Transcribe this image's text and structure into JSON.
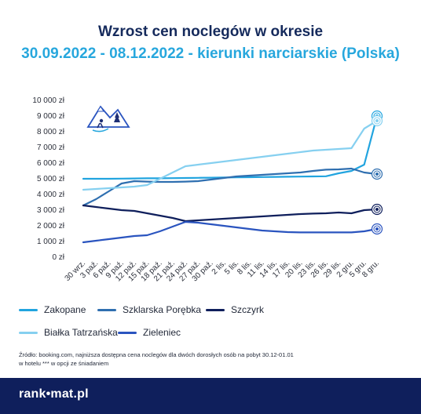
{
  "title": "Wzrost cen noclegów w okresie",
  "subtitle": "30.09.2022 - 08.12.2022 - kierunki narciarskie (Polska)",
  "chart_data": {
    "type": "line",
    "categories": [
      "30 wrz.",
      "3 paź.",
      "6 paź.",
      "9 paź.",
      "12 paź.",
      "15 paź.",
      "18 paź.",
      "21 paź.",
      "24 paź.",
      "27 paź.",
      "30 paź.",
      "2 lis.",
      "5 lis.",
      "8 lis.",
      "11 lis.",
      "14 lis.",
      "17 lis.",
      "20 lis.",
      "23 lis.",
      "26 lis.",
      "29 lis.",
      "2 gru.",
      "5 gru.",
      "8 gru."
    ],
    "y_ticks": [
      "0 zł",
      "1 000 zł",
      "2 000 zł",
      "3 000 zł",
      "4 000 zł",
      "5 000 zł",
      "6 000 zł",
      "7 000 zł",
      "8 000 zł",
      "9 000 zł",
      "10 000 zł"
    ],
    "ylim": [
      0,
      10000
    ],
    "grid": false,
    "legend_position": "bottom",
    "series": [
      {
        "name": "Zakopane",
        "color": "#21a4df",
        "values": [
          5000,
          5000,
          5000,
          5010,
          5020,
          5030,
          5030,
          5040,
          5050,
          5060,
          5070,
          5080,
          5090,
          5100,
          5110,
          5120,
          5130,
          5140,
          5150,
          5160,
          5350,
          5500,
          5900,
          9000
        ]
      },
      {
        "name": "Szklarska Porębka",
        "color": "#2f6fb0",
        "values": [
          3300,
          3700,
          4200,
          4700,
          4850,
          4820,
          4800,
          4800,
          4820,
          4850,
          4950,
          5050,
          5150,
          5200,
          5250,
          5300,
          5350,
          5400,
          5500,
          5580,
          5600,
          5650,
          5400,
          5300
        ]
      },
      {
        "name": "Szczyrk",
        "color": "#0f1f5c",
        "values": [
          3300,
          3200,
          3100,
          3000,
          2950,
          2800,
          2650,
          2500,
          2300,
          2350,
          2400,
          2450,
          2500,
          2550,
          2600,
          2650,
          2700,
          2750,
          2780,
          2800,
          2850,
          2800,
          3000,
          3050
        ]
      },
      {
        "name": "Białka Tatrzańska",
        "color": "#86d0f0",
        "values": [
          4300,
          4350,
          4400,
          4450,
          4500,
          4600,
          5000,
          5400,
          5800,
          5900,
          6000,
          6100,
          6200,
          6300,
          6400,
          6500,
          6600,
          6700,
          6800,
          6850,
          6900,
          6950,
          8200,
          8700
        ]
      },
      {
        "name": "Zieleniec",
        "color": "#2a54bf",
        "values": [
          950,
          1050,
          1150,
          1250,
          1350,
          1400,
          1650,
          1950,
          2250,
          2200,
          2100,
          2000,
          1900,
          1800,
          1700,
          1650,
          1600,
          1580,
          1580,
          1580,
          1580,
          1580,
          1650,
          1800
        ]
      }
    ]
  },
  "legend": {
    "items": [
      "Zakopane",
      "Szklarska Porębka",
      "Szczyrk",
      "Białka Tatrzańska",
      "Zieleniec"
    ]
  },
  "source": {
    "line1": "Źródło: booking.com, najniższa dostępna cena noclegów dla dwóch dorosłych osób na pobyt 30.12-01.01",
    "line2": "w hotelu *** w opcji ze śniadaniem"
  },
  "footer": {
    "logo": "rank•mat.pl"
  },
  "colors": {
    "title": "#152a5c",
    "subtitle": "#27a7dd",
    "footer_bg": "#0f1f5c"
  }
}
